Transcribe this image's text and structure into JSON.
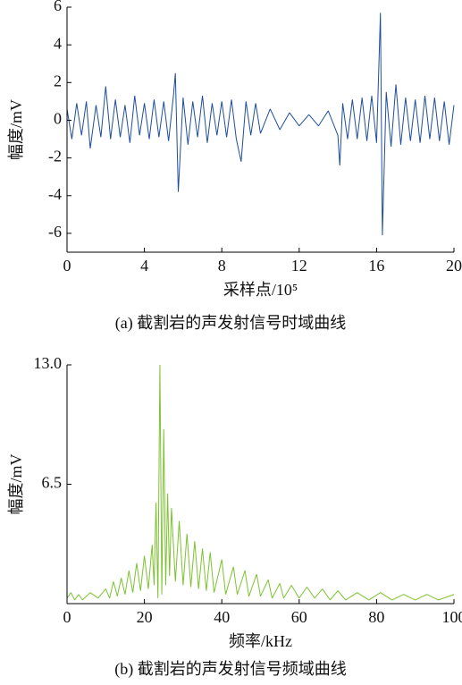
{
  "chart_data": [
    {
      "type": "line",
      "ylabel": "幅度/mV",
      "xlabel": "采样点/10⁵",
      "caption": "(a) 截割岩的声发射信号时域曲线",
      "xlim": [
        0,
        20
      ],
      "xticks": [
        0,
        4,
        8,
        12,
        16,
        20
      ],
      "ylim": [
        -7,
        6
      ],
      "yticks": [
        -6,
        -4,
        -2,
        0,
        2,
        4,
        6
      ],
      "series": [
        {
          "color": "#1f4e9c",
          "x": [
            0,
            0.25,
            0.5,
            0.75,
            1.0,
            1.2,
            1.5,
            1.75,
            2.0,
            2.25,
            2.5,
            2.75,
            3.0,
            3.25,
            3.5,
            3.75,
            4.0,
            4.25,
            4.5,
            4.75,
            5.0,
            5.25,
            5.5,
            5.6,
            5.75,
            6.0,
            6.25,
            6.5,
            6.75,
            7.0,
            7.25,
            7.5,
            7.75,
            8.0,
            8.25,
            8.5,
            8.75,
            9.0,
            9.25,
            9.5,
            9.75,
            10.0,
            10.5,
            11.0,
            11.5,
            12.0,
            12.5,
            13.0,
            13.5,
            14.0,
            14.1,
            14.25,
            14.5,
            14.75,
            15.0,
            15.25,
            15.5,
            15.75,
            16.0,
            16.2,
            16.3,
            16.5,
            16.75,
            17.0,
            17.25,
            17.5,
            17.75,
            18.0,
            18.25,
            18.5,
            18.75,
            19.0,
            19.25,
            19.5,
            19.75,
            20.0
          ],
          "values": [
            0.6,
            -1.0,
            0.9,
            -0.8,
            1.0,
            -1.5,
            0.8,
            -0.9,
            1.8,
            -1.0,
            1.1,
            -0.9,
            0.8,
            -1.2,
            1.3,
            -0.8,
            0.9,
            -1.0,
            1.1,
            -0.9,
            1.0,
            -1.1,
            1.3,
            2.5,
            -3.8,
            1.2,
            -1.3,
            1.0,
            -0.9,
            1.3,
            -1.2,
            0.9,
            -0.8,
            1.0,
            -0.9,
            1.1,
            -1.0,
            -2.2,
            1.0,
            -0.8,
            0.9,
            -0.7,
            0.6,
            -0.5,
            0.4,
            -0.3,
            0.3,
            -0.3,
            0.5,
            -0.8,
            -2.4,
            0.9,
            -1.0,
            1.1,
            -1.0,
            1.2,
            -1.1,
            1.3,
            -1.2,
            5.7,
            -6.1,
            1.5,
            -1.4,
            1.9,
            -1.3,
            1.2,
            -1.1,
            1.1,
            -1.2,
            1.3,
            -1.0,
            1.2,
            -1.1,
            1.0,
            -1.3,
            0.8
          ]
        }
      ]
    },
    {
      "type": "line",
      "ylabel": "幅度/mV",
      "xlabel": "频率/kHz",
      "caption": "(b) 截割岩的声发射信号频域曲线",
      "xlim": [
        0,
        100
      ],
      "xticks": [
        0,
        20,
        40,
        60,
        80,
        100
      ],
      "ylim": [
        0,
        13
      ],
      "yticks": [
        6.5,
        {
          "value": 13,
          "label": "13.0"
        }
      ],
      "series": [
        {
          "color": "#7dc231",
          "x": [
            0,
            1,
            2,
            3,
            4,
            6,
            8,
            10,
            11,
            12,
            13,
            14,
            15,
            16,
            17,
            18,
            19,
            20,
            21,
            22,
            22.5,
            23,
            23.5,
            24,
            24.5,
            25,
            25.5,
            26,
            26.5,
            27,
            28,
            29,
            30,
            31,
            32,
            33,
            34,
            35,
            36,
            37,
            38,
            40,
            41,
            43,
            44,
            46,
            47,
            49,
            50,
            52,
            53,
            55,
            56,
            58,
            60,
            62,
            64,
            66,
            68,
            70,
            72,
            75,
            78,
            81,
            84,
            87,
            90,
            93,
            96,
            100
          ],
          "values": [
            0.3,
            0.6,
            0.2,
            0.5,
            0.2,
            0.6,
            0.3,
            0.8,
            0.3,
            1.2,
            0.4,
            1.4,
            0.5,
            1.8,
            0.6,
            2.2,
            0.7,
            2.6,
            0.8,
            3.2,
            1.0,
            5.5,
            0.3,
            13.0,
            0.5,
            9.5,
            1.0,
            6.0,
            1.5,
            5.2,
            1.2,
            4.5,
            1.0,
            3.8,
            0.9,
            3.4,
            0.8,
            3.0,
            0.7,
            2.8,
            0.6,
            2.4,
            0.5,
            2.0,
            0.5,
            1.8,
            0.4,
            1.6,
            0.4,
            1.3,
            0.3,
            1.1,
            0.3,
            1.0,
            0.3,
            0.9,
            0.3,
            0.8,
            0.2,
            0.7,
            0.2,
            0.6,
            0.2,
            0.6,
            0.2,
            0.5,
            0.2,
            0.5,
            0.2,
            0.5
          ]
        }
      ]
    }
  ]
}
